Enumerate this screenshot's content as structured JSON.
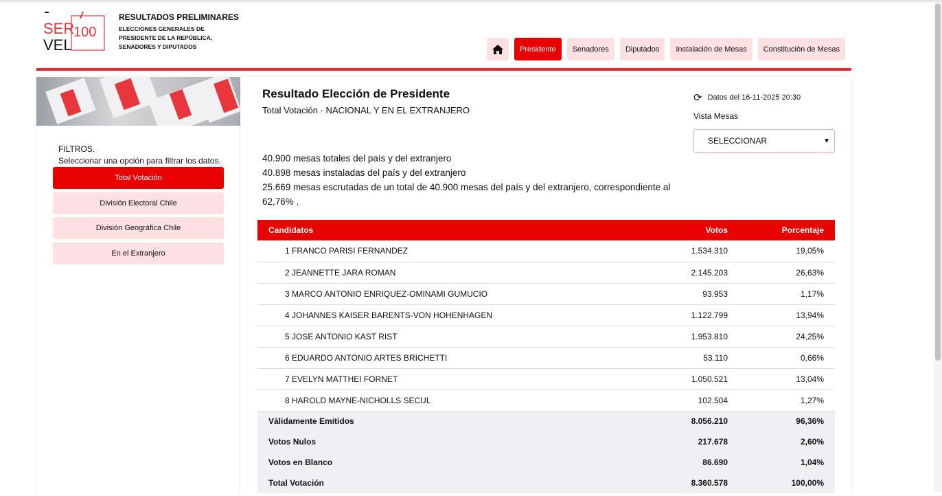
{
  "header": {
    "logo_text": "SERVEL 100 años Servicio Electoral de Chile",
    "title": "RESULTADOS PRELIMINARES",
    "subtitle": "ELECCIONES GENERALES DE PRESIDENTE DE LA REPÚBLICA, SENADORES Y DIPUTADOS"
  },
  "nav": {
    "items": [
      "Presidente",
      "Senadores",
      "Diputados",
      "Instalación de Mesas",
      "Constitución de Mesas"
    ],
    "active": "Presidente"
  },
  "sidebar": {
    "filters_title": "FILTROS.",
    "filters_hint": "Seleccionar una opción para filtrar los datos.",
    "buttons": [
      "Total Votación",
      "División Electoral Chile",
      "División Geográfica Chile",
      "En el Extranjero"
    ]
  },
  "main": {
    "title": "Resultado Elección de Presidente",
    "subtitle": "Total Votación - NACIONAL Y EN EL EXTRANJERO",
    "date": "Datos del 16-11-2025 20:30",
    "vista_label": "Vista Mesas",
    "select_value": "SELECCIONAR",
    "info": [
      "40.900 mesas totales del país y del extranjero",
      "40.898 mesas instaladas del país y del extranjero",
      "25.669 mesas escrutadas de un total de 40.900 mesas del país y del extranjero, correspondiente al 62,76% ."
    ]
  },
  "table": {
    "headers": [
      "Candidatos",
      "Votos",
      "Porcentaje"
    ],
    "rows": [
      [
        "1 FRANCO PARISI FERNANDEZ",
        "1.534.310",
        "19,05%"
      ],
      [
        "2 JEANNETTE JARA ROMAN",
        "2.145.203",
        "26,63%"
      ],
      [
        "3 MARCO ANTONIO ENRIQUEZ-OMINAMI GUMUCIO",
        "93.953",
        "1,17%"
      ],
      [
        "4 JOHANNES KAISER BARENTS-VON HOHENHAGEN",
        "1.122.799",
        "13,94%"
      ],
      [
        "5 JOSE ANTONIO KAST RIST",
        "1.953.810",
        "24,25%"
      ],
      [
        "6 EDUARDO ANTONIO ARTES BRICHETTI",
        "53.110",
        "0,66%"
      ],
      [
        "7 EVELYN MATTHEI FORNET",
        "1.050.521",
        "13,04%"
      ],
      [
        "8 HAROLD MAYNE-NICHOLLS SECUL",
        "102.504",
        "1,27%"
      ]
    ],
    "summary": [
      [
        "Válidamente Emitidos",
        "8.056.210",
        "96,36%"
      ],
      [
        "Votos Nulos",
        "217.678",
        "2,60%"
      ],
      [
        "Votos en Blanco",
        "86.690",
        "1,04%"
      ],
      [
        "Total Votación",
        "8.360.578",
        "100,00%"
      ]
    ]
  },
  "colors": {
    "accent": "#e90000",
    "light": "#fde0e1"
  }
}
